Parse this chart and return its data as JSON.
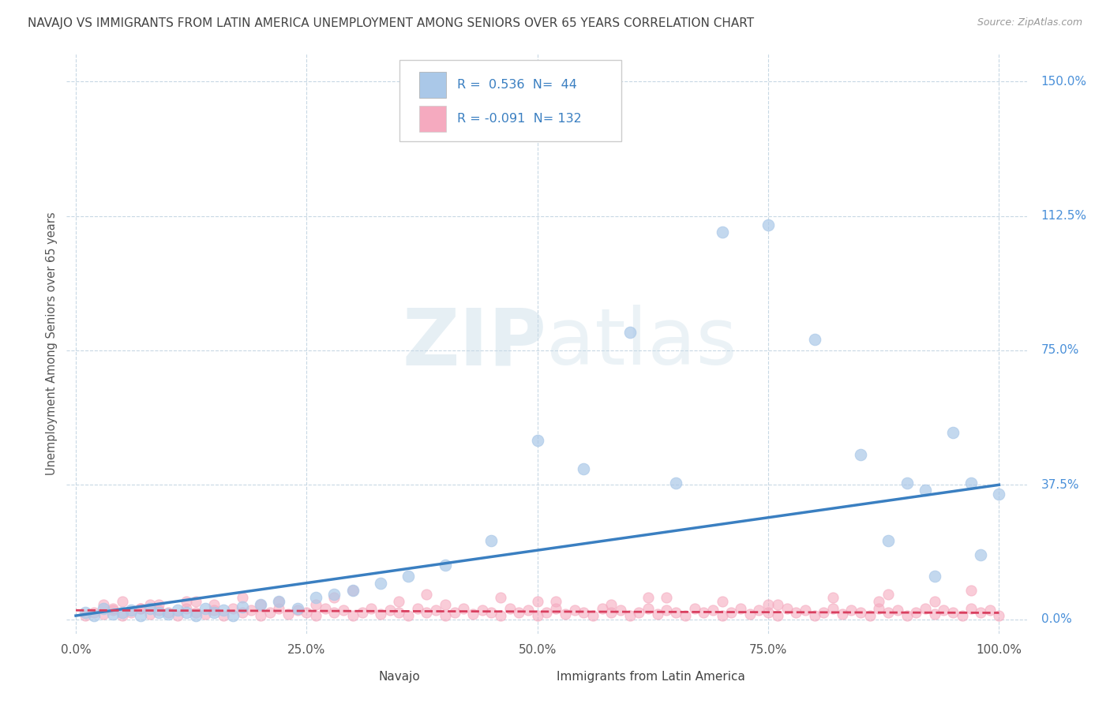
{
  "title": "NAVAJO VS IMMIGRANTS FROM LATIN AMERICA UNEMPLOYMENT AMONG SENIORS OVER 65 YEARS CORRELATION CHART",
  "source": "Source: ZipAtlas.com",
  "ylabel": "Unemployment Among Seniors over 65 years",
  "xlim": [
    -0.01,
    1.03
  ],
  "ylim": [
    -0.04,
    1.58
  ],
  "ytick_labels": [
    "0.0%",
    "37.5%",
    "75.0%",
    "112.5%",
    "150.0%"
  ],
  "ytick_values": [
    0.0,
    0.375,
    0.75,
    1.125,
    1.5
  ],
  "xtick_labels": [
    "0.0%",
    "25.0%",
    "50.0%",
    "75.0%",
    "100.0%"
  ],
  "xtick_values": [
    0.0,
    0.25,
    0.5,
    0.75,
    1.0
  ],
  "legend_bottom": [
    "Navajo",
    "Immigrants from Latin America"
  ],
  "navajo_R": 0.536,
  "navajo_N": 44,
  "immigrants_R": -0.091,
  "immigrants_N": 132,
  "navajo_color": "#aac8e8",
  "navajo_line_color": "#3a7fc1",
  "immigrants_color": "#f5aabf",
  "immigrants_line_color": "#d94060",
  "background_color": "#ffffff",
  "grid_color": "#c8d8e4",
  "watermark_zip": "ZIP",
  "watermark_atlas": "atlas",
  "title_fontsize": 11,
  "source_fontsize": 9,
  "axis_label_color": "#555555",
  "tick_color_y": "#4a90d9",
  "tick_color_x": "#555555",
  "navajo_scatter_x": [
    0.01,
    0.02,
    0.03,
    0.04,
    0.05,
    0.06,
    0.07,
    0.08,
    0.09,
    0.1,
    0.11,
    0.12,
    0.13,
    0.14,
    0.15,
    0.16,
    0.17,
    0.18,
    0.2,
    0.22,
    0.24,
    0.26,
    0.28,
    0.3,
    0.33,
    0.36,
    0.4,
    0.45,
    0.5,
    0.55,
    0.6,
    0.65,
    0.7,
    0.75,
    0.8,
    0.85,
    0.88,
    0.9,
    0.92,
    0.93,
    0.95,
    0.97,
    0.98,
    1.0
  ],
  "navajo_scatter_y": [
    0.02,
    0.01,
    0.03,
    0.015,
    0.02,
    0.025,
    0.01,
    0.03,
    0.02,
    0.015,
    0.025,
    0.02,
    0.01,
    0.03,
    0.02,
    0.025,
    0.01,
    0.035,
    0.04,
    0.05,
    0.03,
    0.06,
    0.07,
    0.08,
    0.1,
    0.12,
    0.15,
    0.22,
    0.5,
    0.42,
    0.8,
    0.38,
    1.08,
    1.1,
    0.78,
    0.46,
    0.22,
    0.38,
    0.36,
    0.12,
    0.52,
    0.38,
    0.18,
    0.35
  ],
  "immigrants_scatter_x": [
    0.01,
    0.02,
    0.03,
    0.04,
    0.05,
    0.06,
    0.07,
    0.08,
    0.09,
    0.1,
    0.11,
    0.12,
    0.13,
    0.14,
    0.15,
    0.16,
    0.17,
    0.18,
    0.19,
    0.2,
    0.21,
    0.22,
    0.23,
    0.24,
    0.25,
    0.26,
    0.27,
    0.28,
    0.29,
    0.3,
    0.31,
    0.32,
    0.33,
    0.34,
    0.35,
    0.36,
    0.37,
    0.38,
    0.39,
    0.4,
    0.41,
    0.42,
    0.43,
    0.44,
    0.45,
    0.46,
    0.47,
    0.48,
    0.49,
    0.5,
    0.51,
    0.52,
    0.53,
    0.54,
    0.55,
    0.56,
    0.57,
    0.58,
    0.59,
    0.6,
    0.61,
    0.62,
    0.63,
    0.64,
    0.65,
    0.66,
    0.67,
    0.68,
    0.69,
    0.7,
    0.71,
    0.72,
    0.73,
    0.74,
    0.75,
    0.76,
    0.77,
    0.78,
    0.79,
    0.8,
    0.81,
    0.82,
    0.83,
    0.84,
    0.85,
    0.86,
    0.87,
    0.88,
    0.89,
    0.9,
    0.91,
    0.92,
    0.93,
    0.94,
    0.95,
    0.96,
    0.97,
    0.98,
    0.99,
    1.0,
    0.03,
    0.05,
    0.07,
    0.09,
    0.12,
    0.15,
    0.18,
    0.22,
    0.26,
    0.3,
    0.35,
    0.4,
    0.46,
    0.52,
    0.58,
    0.64,
    0.7,
    0.76,
    0.82,
    0.88,
    0.93,
    0.97,
    0.04,
    0.08,
    0.13,
    0.2,
    0.28,
    0.38,
    0.5,
    0.62,
    0.75,
    0.87
  ],
  "immigrants_scatter_y": [
    0.01,
    0.02,
    0.015,
    0.025,
    0.01,
    0.02,
    0.03,
    0.015,
    0.025,
    0.02,
    0.01,
    0.03,
    0.02,
    0.015,
    0.025,
    0.01,
    0.03,
    0.02,
    0.025,
    0.01,
    0.02,
    0.03,
    0.015,
    0.025,
    0.02,
    0.01,
    0.03,
    0.02,
    0.025,
    0.01,
    0.02,
    0.03,
    0.015,
    0.025,
    0.02,
    0.01,
    0.03,
    0.02,
    0.025,
    0.01,
    0.02,
    0.03,
    0.015,
    0.025,
    0.02,
    0.01,
    0.03,
    0.02,
    0.025,
    0.01,
    0.02,
    0.03,
    0.015,
    0.025,
    0.02,
    0.01,
    0.03,
    0.02,
    0.025,
    0.01,
    0.02,
    0.03,
    0.015,
    0.025,
    0.02,
    0.01,
    0.03,
    0.02,
    0.025,
    0.01,
    0.02,
    0.03,
    0.015,
    0.025,
    0.02,
    0.01,
    0.03,
    0.02,
    0.025,
    0.01,
    0.02,
    0.03,
    0.015,
    0.025,
    0.02,
    0.01,
    0.03,
    0.02,
    0.025,
    0.01,
    0.02,
    0.03,
    0.015,
    0.025,
    0.02,
    0.01,
    0.03,
    0.02,
    0.025,
    0.01,
    0.04,
    0.05,
    0.03,
    0.04,
    0.05,
    0.04,
    0.06,
    0.05,
    0.04,
    0.08,
    0.05,
    0.04,
    0.06,
    0.05,
    0.04,
    0.06,
    0.05,
    0.04,
    0.06,
    0.07,
    0.05,
    0.08,
    0.03,
    0.04,
    0.05,
    0.04,
    0.06,
    0.07,
    0.05,
    0.06,
    0.04,
    0.05
  ],
  "nav_line_x0": 0.0,
  "nav_line_y0": 0.01,
  "nav_line_x1": 1.0,
  "nav_line_y1": 0.375,
  "imm_line_x0": 0.0,
  "imm_line_y0": 0.025,
  "imm_line_x1": 1.0,
  "imm_line_y1": 0.018
}
